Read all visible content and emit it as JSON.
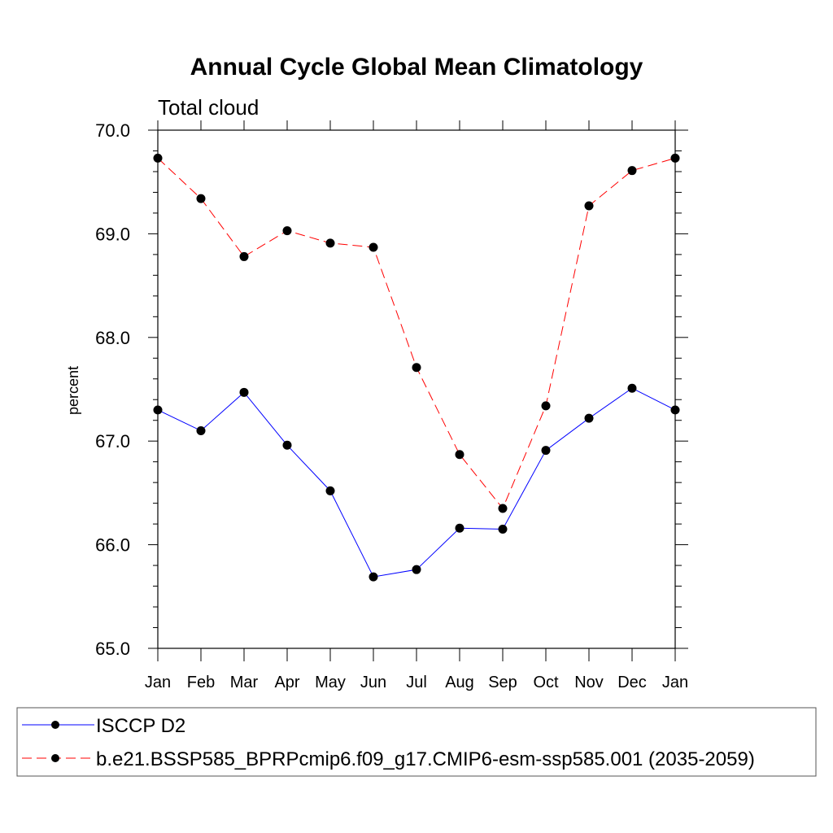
{
  "chart_data": {
    "type": "line",
    "title": "Annual Cycle Global Mean Climatology",
    "subtitle": "Total cloud",
    "xlabel": "",
    "ylabel": "percent",
    "categories": [
      "Jan",
      "Feb",
      "Mar",
      "Apr",
      "May",
      "Jun",
      "Jul",
      "Aug",
      "Sep",
      "Oct",
      "Nov",
      "Dec",
      "Jan"
    ],
    "ylim": [
      65.0,
      70.0
    ],
    "yticks": [
      "65.0",
      "66.0",
      "67.0",
      "68.0",
      "69.0",
      "70.0"
    ],
    "grid": false,
    "legend_position": "bottom",
    "series": [
      {
        "name": "ISCCP D2",
        "color": "#0000ff",
        "dash": "solid",
        "marker": "filled-circle",
        "values": [
          67.3,
          67.1,
          67.47,
          66.96,
          66.52,
          65.69,
          65.76,
          66.16,
          66.15,
          66.91,
          67.22,
          67.51,
          67.3
        ]
      },
      {
        "name": "b.e21.BSSP585_BPRPcmip6.f09_g17.CMIP6-esm-ssp585.001 (2035-2059)",
        "color": "#ff0000",
        "dash": "dashed",
        "marker": "filled-circle",
        "values": [
          69.73,
          69.34,
          68.78,
          69.03,
          68.91,
          68.87,
          67.71,
          66.87,
          66.35,
          67.34,
          69.27,
          69.61,
          69.73
        ]
      }
    ]
  }
}
